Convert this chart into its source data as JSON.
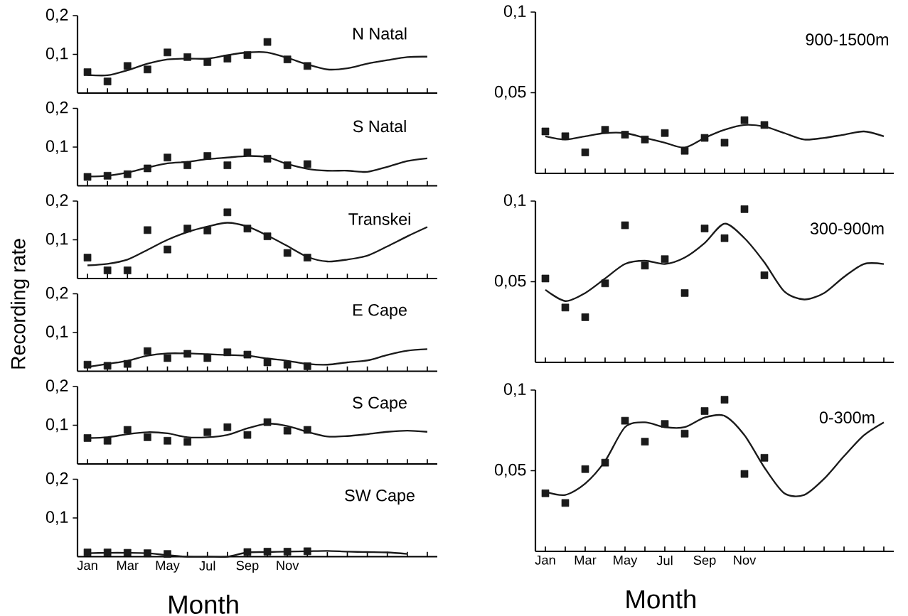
{
  "chart_data": [
    {
      "type": "line",
      "title": "N Natal",
      "ylim": [
        0,
        0.2
      ],
      "categories": [
        null,
        null,
        null,
        null,
        null,
        null,
        null,
        null,
        null,
        null,
        null,
        null,
        null,
        null,
        null,
        null,
        null,
        null
      ],
      "yticks": [
        {
          "value": 0.1,
          "label": "0,1"
        },
        {
          "value": 0.2,
          "label": "0,2"
        }
      ],
      "series": [
        {
          "type": "scatter",
          "marker": "square",
          "color": "#1a1a1a",
          "values": [
            0.054,
            0.03,
            0.07,
            0.061,
            0.105,
            0.093,
            0.08,
            0.089,
            0.098,
            0.132,
            0.087,
            0.07,
            null,
            null,
            null,
            null,
            null,
            null
          ]
        },
        {
          "color": "#1a1a1a",
          "values": [
            0.047,
            0.046,
            0.059,
            0.076,
            0.087,
            0.089,
            0.089,
            0.098,
            0.105,
            0.105,
            0.091,
            0.074,
            0.061,
            0.064,
            0.076,
            0.085,
            0.093,
            0.094
          ]
        }
      ]
    },
    {
      "type": "line",
      "title": "S Natal",
      "ylim": [
        0,
        0.2
      ],
      "categories": [
        null,
        null,
        null,
        null,
        null,
        null,
        null,
        null,
        null,
        null,
        null,
        null,
        null,
        null,
        null,
        null,
        null,
        null
      ],
      "yticks": [
        {
          "value": 0.1,
          "label": "0,1"
        },
        {
          "value": 0.2,
          "label": "0,2"
        }
      ],
      "series": [
        {
          "type": "scatter",
          "marker": "square",
          "color": "#1a1a1a",
          "values": [
            0.023,
            0.026,
            0.03,
            0.045,
            0.073,
            0.053,
            0.077,
            0.053,
            0.086,
            0.07,
            0.053,
            0.056,
            null,
            null,
            null,
            null,
            null,
            null
          ]
        },
        {
          "color": "#1a1a1a",
          "values": [
            0.024,
            0.026,
            0.034,
            0.047,
            0.058,
            0.062,
            0.069,
            0.073,
            0.077,
            0.074,
            0.056,
            0.044,
            0.039,
            0.039,
            0.036,
            0.049,
            0.064,
            0.071
          ]
        }
      ]
    },
    {
      "type": "line",
      "title": "Transkei",
      "ylabel": "Recording rate",
      "ylim": [
        0,
        0.2
      ],
      "categories": [
        null,
        null,
        null,
        null,
        null,
        null,
        null,
        null,
        null,
        null,
        null,
        null,
        null,
        null,
        null,
        null,
        null,
        null
      ],
      "yticks": [
        {
          "value": 0.1,
          "label": "0,1"
        },
        {
          "value": 0.2,
          "label": "0,2"
        }
      ],
      "series": [
        {
          "type": "scatter",
          "marker": "square",
          "color": "#1a1a1a",
          "values": [
            0.054,
            0.021,
            0.021,
            0.125,
            0.075,
            0.129,
            0.124,
            0.171,
            0.129,
            0.109,
            0.066,
            0.054,
            null,
            null,
            null,
            null,
            null,
            null
          ]
        },
        {
          "color": "#1a1a1a",
          "values": [
            0.034,
            0.038,
            0.049,
            0.074,
            0.1,
            0.12,
            0.134,
            0.144,
            0.134,
            0.111,
            0.084,
            0.056,
            0.044,
            0.049,
            0.059,
            0.083,
            0.109,
            0.133
          ]
        }
      ]
    },
    {
      "type": "line",
      "title": "E Cape",
      "ylim": [
        0,
        0.2
      ],
      "categories": [
        null,
        null,
        null,
        null,
        null,
        null,
        null,
        null,
        null,
        null,
        null,
        null,
        null,
        null,
        null,
        null,
        null,
        null
      ],
      "yticks": [
        {
          "value": 0.1,
          "label": "0,1"
        },
        {
          "value": 0.2,
          "label": "0,2"
        }
      ],
      "series": [
        {
          "type": "scatter",
          "marker": "square",
          "color": "#1a1a1a",
          "values": [
            0.017,
            0.014,
            0.019,
            0.052,
            0.034,
            0.045,
            0.034,
            0.049,
            0.043,
            0.023,
            0.017,
            0.013,
            null,
            null,
            null,
            null,
            null,
            null
          ]
        },
        {
          "color": "#1a1a1a",
          "values": [
            0.011,
            0.019,
            0.027,
            0.04,
            0.046,
            0.046,
            0.044,
            0.042,
            0.04,
            0.033,
            0.027,
            0.019,
            0.017,
            0.023,
            0.028,
            0.042,
            0.053,
            0.057
          ]
        }
      ]
    },
    {
      "type": "line",
      "title": "S Cape",
      "ylim": [
        0,
        0.2
      ],
      "categories": [
        null,
        null,
        null,
        null,
        null,
        null,
        null,
        null,
        null,
        null,
        null,
        null,
        null,
        null,
        null,
        null,
        null,
        null
      ],
      "yticks": [
        {
          "value": 0.1,
          "label": "0,1"
        },
        {
          "value": 0.2,
          "label": "0,2"
        }
      ],
      "series": [
        {
          "type": "scatter",
          "marker": "square",
          "color": "#1a1a1a",
          "values": [
            0.067,
            0.06,
            0.088,
            0.069,
            0.06,
            0.057,
            0.082,
            0.095,
            0.075,
            0.108,
            0.086,
            0.088,
            null,
            null,
            null,
            null,
            null,
            null
          ]
        },
        {
          "color": "#1a1a1a",
          "values": [
            0.067,
            0.069,
            0.077,
            0.082,
            0.079,
            0.069,
            0.069,
            0.075,
            0.092,
            0.104,
            0.098,
            0.083,
            0.071,
            0.072,
            0.077,
            0.083,
            0.086,
            0.083
          ]
        }
      ]
    },
    {
      "type": "line",
      "title": "SW Cape",
      "xlabel": "Month",
      "ylim": [
        0,
        0.2
      ],
      "categories": [
        "Jan",
        null,
        "Mar",
        null,
        "May",
        null,
        "Jul",
        null,
        "Sep",
        null,
        "Nov",
        null,
        null,
        null,
        null,
        null,
        null,
        null
      ],
      "yticks": [
        {
          "value": 0.1,
          "label": "0,1"
        },
        {
          "value": 0.2,
          "label": "0,2"
        }
      ],
      "series": [
        {
          "type": "scatter",
          "marker": "square",
          "color": "#1a1a1a",
          "values": [
            0.011,
            0.011,
            0.01,
            0.009,
            0.007,
            null,
            null,
            null,
            0.012,
            0.013,
            0.013,
            0.014,
            null,
            null,
            null,
            null,
            null,
            null
          ]
        },
        {
          "color": "#1a1a1a",
          "values": [
            0.009,
            0.01,
            0.01,
            0.009,
            0.004,
            0,
            0,
            0,
            0.011,
            0.012,
            0.013,
            0.014,
            0.015,
            0.013,
            0.012,
            0.011,
            0.007,
            null
          ]
        }
      ]
    },
    {
      "type": "line",
      "title": "900-1500m",
      "ylim": [
        0,
        0.1
      ],
      "categories": [
        null,
        null,
        null,
        null,
        null,
        null,
        null,
        null,
        null,
        null,
        null,
        null,
        null,
        null,
        null,
        null,
        null,
        null
      ],
      "yticks": [
        {
          "value": 0.05,
          "label": "0,05"
        },
        {
          "value": 0.1,
          "label": "0,1"
        }
      ],
      "series": [
        {
          "type": "scatter",
          "marker": "square",
          "color": "#1a1a1a",
          "values": [
            0.026,
            0.023,
            0.013,
            0.027,
            0.024,
            0.021,
            0.025,
            0.014,
            0.022,
            0.019,
            0.033,
            0.03,
            null,
            null,
            null,
            null,
            null,
            null
          ]
        },
        {
          "color": "#1a1a1a",
          "values": [
            0.023,
            0.021,
            0.023,
            0.025,
            0.025,
            0.022,
            0.019,
            0.016,
            0.022,
            0.027,
            0.03,
            0.029,
            0.025,
            0.021,
            0.022,
            0.024,
            0.026,
            0.023
          ]
        }
      ]
    },
    {
      "type": "line",
      "title": "300-900m",
      "ylim": [
        0,
        0.1
      ],
      "categories": [
        null,
        null,
        null,
        null,
        null,
        null,
        null,
        null,
        null,
        null,
        null,
        null,
        null,
        null,
        null,
        null,
        null,
        null
      ],
      "yticks": [
        {
          "value": 0.05,
          "label": "0,05"
        },
        {
          "value": 0.1,
          "label": "0,1"
        }
      ],
      "series": [
        {
          "type": "scatter",
          "marker": "square",
          "color": "#1a1a1a",
          "values": [
            0.052,
            0.034,
            0.028,
            0.049,
            0.085,
            0.06,
            0.064,
            0.043,
            0.083,
            0.077,
            0.095,
            0.054,
            null,
            null,
            null,
            null,
            null,
            null
          ]
        },
        {
          "color": "#1a1a1a",
          "values": [
            0.045,
            0.038,
            0.043,
            0.052,
            0.061,
            0.063,
            0.061,
            0.065,
            0.074,
            0.086,
            0.077,
            0.062,
            0.044,
            0.039,
            0.043,
            0.053,
            0.061,
            0.061
          ]
        }
      ]
    },
    {
      "type": "line",
      "title": "0-300m",
      "xlabel": "Month",
      "ylim": [
        0,
        0.1
      ],
      "categories": [
        "Jan",
        null,
        "Mar",
        null,
        "May",
        null,
        "Jul",
        null,
        "Sep",
        null,
        "Nov",
        null,
        null,
        null,
        null,
        null,
        null,
        null
      ],
      "yticks": [
        {
          "value": 0.05,
          "label": "0,05"
        },
        {
          "value": 0.1,
          "label": "0,1"
        }
      ],
      "series": [
        {
          "type": "scatter",
          "marker": "square",
          "color": "#1a1a1a",
          "values": [
            0.036,
            0.03,
            0.051,
            0.055,
            0.081,
            0.068,
            0.079,
            0.073,
            0.087,
            0.094,
            0.048,
            0.058,
            null,
            null,
            null,
            null,
            null,
            null
          ]
        },
        {
          "color": "#1a1a1a",
          "values": [
            0.037,
            0.035,
            0.042,
            0.056,
            0.077,
            0.08,
            0.077,
            0.077,
            0.083,
            0.084,
            0.072,
            0.052,
            0.036,
            0.035,
            0.045,
            0.059,
            0.072,
            0.08
          ]
        }
      ]
    }
  ]
}
